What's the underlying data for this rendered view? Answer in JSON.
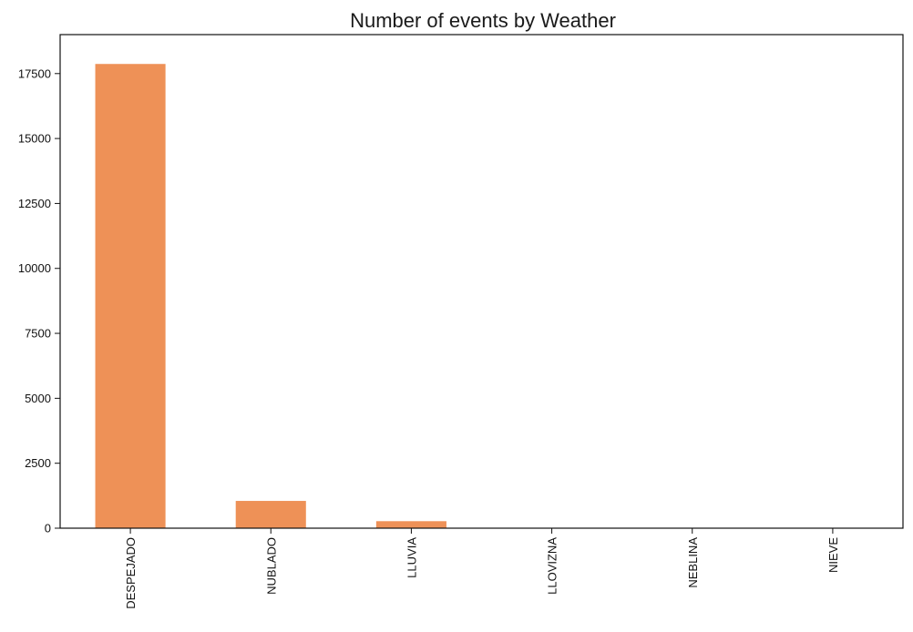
{
  "chart_data": {
    "type": "bar",
    "title": "Number of events by Weather",
    "xlabel": "",
    "ylabel": "",
    "categories": [
      "DESPEJADO",
      "NUBLADO",
      "LLUVIA",
      "LLOVIZNA",
      "NEBLINA",
      "NIEVE"
    ],
    "values": [
      17870,
      1050,
      270,
      10,
      5,
      2
    ],
    "ylim": [
      0,
      19000
    ],
    "yticks": [
      0,
      2500,
      5000,
      7500,
      10000,
      12500,
      15000,
      17500
    ],
    "ytick_labels": [
      "0",
      "2500",
      "5000",
      "7500",
      "10000",
      "12500",
      "15000",
      "17500"
    ],
    "bar_color": "#ee9157",
    "legend": false,
    "grid": false
  }
}
